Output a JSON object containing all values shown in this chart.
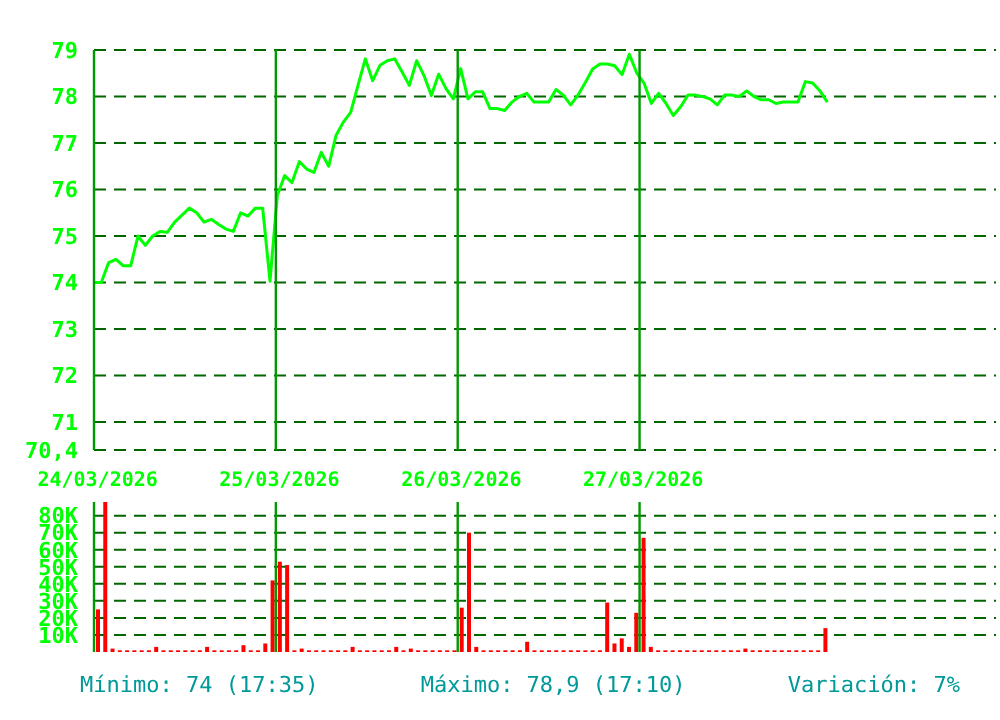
{
  "chart_data": [
    {
      "type": "line",
      "categories": [
        null,
        null,
        null,
        null,
        null,
        null,
        null,
        null,
        null,
        null,
        null,
        null,
        null,
        null,
        null,
        null,
        null,
        null,
        null,
        null,
        null,
        null,
        null,
        null,
        null,
        null,
        null,
        null,
        null,
        null,
        null,
        null,
        null,
        null,
        null,
        null,
        null,
        null,
        null,
        null,
        null,
        null,
        null,
        null,
        null,
        null,
        null,
        null,
        null,
        null,
        null,
        null,
        null,
        null,
        null,
        null,
        null,
        null,
        null,
        null,
        null,
        null,
        null,
        null,
        null,
        null,
        null,
        null,
        null,
        null,
        null,
        null,
        null,
        null,
        null,
        null,
        null,
        null,
        null,
        null,
        null,
        null,
        null,
        null,
        null,
        null,
        null,
        null,
        null,
        null,
        null,
        null,
        null,
        null,
        null,
        null,
        null,
        null,
        null,
        null,
        null,
        null,
        null,
        null,
        null,
        null,
        null,
        null,
        null,
        null,
        null,
        null,
        null,
        null,
        null,
        null,
        null,
        null,
        null,
        null,
        null,
        null,
        null,
        null
      ],
      "ylim": [
        70.4,
        79
      ],
      "yticks": [
        {
          "value": 70.4,
          "label": "70,4"
        },
        71,
        72,
        73,
        74,
        75,
        76,
        77,
        78,
        79
      ],
      "grid": true,
      "series": [
        {
          "color": "#00ff00",
          "values": [
            74,
            74,
            74.43,
            74.5,
            74.36,
            74.36,
            75,
            74.8,
            75,
            75.1,
            75.08,
            75.3,
            75.45,
            75.6,
            75.5,
            75.3,
            75.36,
            75.25,
            75.15,
            75.1,
            75.5,
            75.43,
            75.6,
            75.6,
            74.03,
            75.87,
            76.3,
            76.15,
            76.6,
            76.44,
            76.37,
            76.8,
            76.5,
            77.16,
            77.45,
            77.66,
            78.24,
            78.81,
            78.34,
            78.67,
            78.77,
            78.81,
            78.53,
            78.24,
            78.77,
            78.45,
            78.02,
            78.48,
            78.17,
            77.95,
            78.6,
            77.95,
            78.1,
            78.1,
            77.74,
            77.74,
            77.7,
            77.88,
            78,
            78.07,
            77.88,
            77.88,
            77.88,
            78.15,
            78.03,
            77.82,
            78.03,
            78.3,
            78.59,
            78.7,
            78.7,
            78.66,
            78.47,
            78.91,
            78.51,
            78.29,
            77.85,
            78.07,
            77.85,
            77.59,
            77.78,
            78.03,
            78.03,
            78,
            77.95,
            77.82,
            78.03,
            78.03,
            78,
            78.12,
            78,
            77.93,
            77.93,
            77.85,
            77.88,
            77.88,
            77.88,
            78.32,
            78.29,
            78.12,
            77.88,
            null,
            null,
            null,
            null,
            null,
            null,
            null,
            null,
            null,
            null,
            null,
            null,
            null,
            null,
            null,
            null,
            null,
            null,
            null,
            null,
            null,
            null,
            null
          ]
        }
      ]
    },
    {
      "type": "bar",
      "categories": [
        "24/03/2026",
        null,
        null,
        null,
        null,
        null,
        null,
        null,
        null,
        null,
        null,
        null,
        null,
        null,
        null,
        null,
        null,
        null,
        null,
        null,
        null,
        null,
        null,
        null,
        null,
        "25/03/2026",
        null,
        null,
        null,
        null,
        null,
        null,
        null,
        null,
        null,
        null,
        null,
        null,
        null,
        null,
        null,
        null,
        null,
        null,
        null,
        null,
        null,
        null,
        null,
        null,
        "26/03/2026",
        null,
        null,
        null,
        null,
        null,
        null,
        null,
        null,
        null,
        null,
        null,
        null,
        null,
        null,
        null,
        null,
        null,
        null,
        null,
        null,
        null,
        null,
        null,
        null,
        "27/03/2026",
        null,
        null,
        null,
        null,
        null,
        null,
        null,
        null,
        null,
        null,
        null,
        null,
        null,
        null,
        null,
        null,
        null,
        null,
        null,
        null,
        null,
        null,
        null,
        null,
        null,
        null,
        null,
        null,
        null,
        null,
        null,
        null,
        null,
        null,
        null,
        null,
        null,
        null,
        null,
        null,
        null,
        null,
        null,
        null,
        null,
        null,
        null,
        null
      ],
      "ylim": [
        0,
        88000
      ],
      "yticks": [
        {
          "value": 10000,
          "label": "10K"
        },
        {
          "value": 20000,
          "label": "20K"
        },
        {
          "value": 30000,
          "label": "30K"
        },
        {
          "value": 40000,
          "label": "40K"
        },
        {
          "value": 50000,
          "label": "50K"
        },
        {
          "value": 60000,
          "label": "60K"
        },
        {
          "value": 70000,
          "label": "70K"
        },
        {
          "value": 80000,
          "label": "80K"
        }
      ],
      "grid": true,
      "series": [
        {
          "color": "#ff0000",
          "values": [
            25000,
            88000,
            2000,
            1000,
            1000,
            1000,
            1000,
            1000,
            3000,
            1000,
            1000,
            1000,
            1000,
            1000,
            1000,
            3000,
            1000,
            1000,
            1000,
            1000,
            4000,
            1000,
            1000,
            5000,
            42000,
            53000,
            51000,
            1000,
            2000,
            1000,
            1000,
            1000,
            1000,
            1000,
            1000,
            3000,
            1000,
            1000,
            1000,
            1000,
            1000,
            3000,
            1000,
            2000,
            1000,
            1000,
            1000,
            1000,
            1000,
            1000,
            26000,
            70000,
            3000,
            1000,
            1000,
            1000,
            1000,
            1000,
            1000,
            6000,
            1000,
            1000,
            1000,
            1000,
            1000,
            1000,
            1000,
            1000,
            1000,
            1000,
            29000,
            5000,
            8000,
            3000,
            23000,
            67000,
            3000,
            1000,
            1000,
            1000,
            1000,
            1000,
            1000,
            1000,
            1000,
            1000,
            1000,
            1000,
            1000,
            2000,
            1000,
            1000,
            1000,
            1000,
            1000,
            1000,
            1000,
            1000,
            1000,
            1000,
            14000,
            null,
            null,
            null,
            null,
            null,
            null,
            null,
            null,
            null,
            null,
            null,
            null,
            null,
            null,
            null,
            null,
            null,
            null,
            null,
            null,
            null,
            null,
            null
          ]
        }
      ],
      "annotations": [
        "Mínimo: 74 (17:35)",
        "Máximo: 78,9 (17:10)",
        "Variación: 7%"
      ]
    }
  ]
}
